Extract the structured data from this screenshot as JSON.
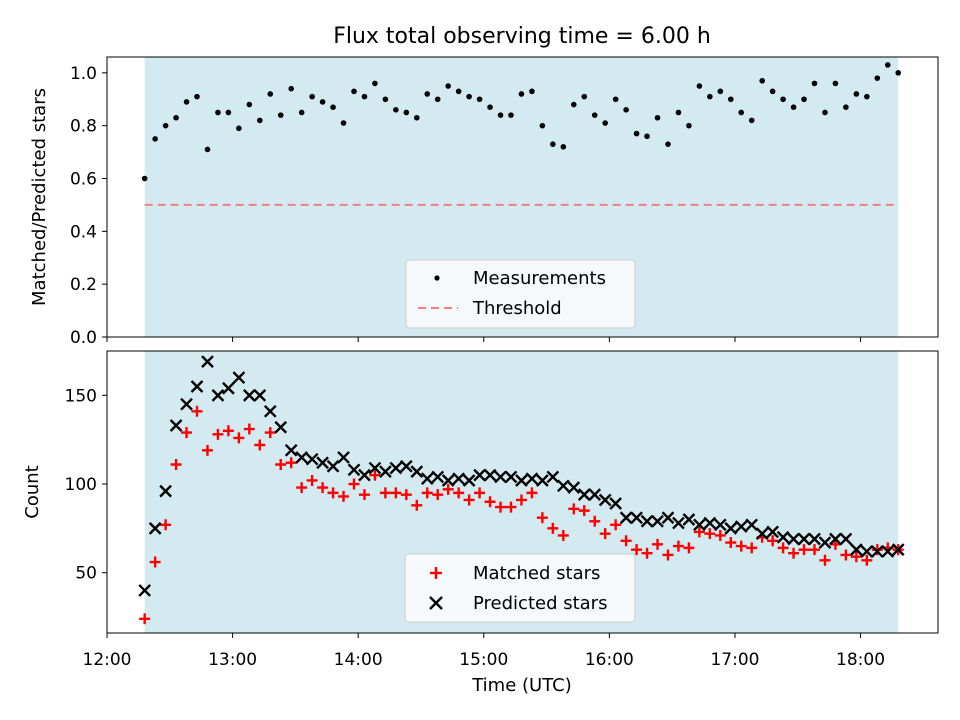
{
  "chart_data": [
    {
      "type": "scatter",
      "title": "Flux total observing time = 6.00 h",
      "xlabel": "",
      "ylabel": "Matched/Predicted stars",
      "ylim": [
        0,
        1.06
      ],
      "yticks": [
        "0.0",
        "0.2",
        "0.4",
        "0.6",
        "0.8",
        "1.0"
      ],
      "shaded_span": [
        "12:18",
        "18:18"
      ],
      "shade_color": "#d3eaf1",
      "threshold": {
        "name": "Threshold",
        "value": 0.5,
        "color": "#f08080",
        "style": "dashed"
      },
      "legend_position": "lower center",
      "series": [
        {
          "name": "Measurements",
          "marker": "dot",
          "color": "#000000",
          "x_start": "12:18",
          "x_step_minutes": 5,
          "values": [
            0.6,
            0.75,
            0.8,
            0.83,
            0.89,
            0.91,
            0.71,
            0.85,
            0.85,
            0.79,
            0.88,
            0.82,
            0.92,
            0.84,
            0.94,
            0.85,
            0.91,
            0.89,
            0.87,
            0.81,
            0.93,
            0.91,
            0.96,
            0.9,
            0.86,
            0.85,
            0.83,
            0.92,
            0.9,
            0.95,
            0.93,
            0.91,
            0.9,
            0.87,
            0.84,
            0.84,
            0.92,
            0.93,
            0.8,
            0.73,
            0.72,
            0.88,
            0.91,
            0.84,
            0.81,
            0.9,
            0.86,
            0.77,
            0.76,
            0.83,
            0.73,
            0.85,
            0.8,
            0.95,
            0.91,
            0.93,
            0.9,
            0.85,
            0.82,
            0.97,
            0.93,
            0.9,
            0.87,
            0.9,
            0.96,
            0.85,
            0.96,
            0.87,
            0.92,
            0.91,
            0.98,
            1.03,
            1.0
          ]
        }
      ]
    },
    {
      "type": "scatter",
      "title": "",
      "xlabel": "Time (UTC)",
      "ylabel": "Count",
      "ylim": [
        16,
        175
      ],
      "yticks": [
        "50",
        "100",
        "150"
      ],
      "xlim": [
        "12:00",
        "18:37"
      ],
      "xticks": [
        "12:00",
        "13:00",
        "14:00",
        "15:00",
        "16:00",
        "17:00",
        "18:00"
      ],
      "shaded_span": [
        "12:18",
        "18:18"
      ],
      "shade_color": "#d3eaf1",
      "legend_position": "lower center",
      "series": [
        {
          "name": "Matched stars",
          "marker": "plus",
          "color": "#ff0000",
          "x_start": "12:18",
          "x_step_minutes": 5,
          "values": [
            24,
            56,
            77,
            111,
            129,
            141,
            119,
            128,
            130,
            126,
            131,
            122,
            129,
            111,
            112,
            98,
            102,
            98,
            95,
            93,
            100,
            94,
            105,
            95,
            95,
            94,
            88,
            95,
            94,
            97,
            95,
            91,
            95,
            90,
            87,
            87,
            91,
            95,
            81,
            75,
            71,
            86,
            85,
            79,
            72,
            77,
            68,
            63,
            61,
            66,
            60,
            65,
            64,
            73,
            72,
            71,
            67,
            65,
            64,
            70,
            68,
            64,
            61,
            63,
            63,
            57,
            66,
            60,
            59,
            57,
            63,
            64,
            63
          ]
        },
        {
          "name": "Predicted stars",
          "marker": "x",
          "color": "#000000",
          "x_start": "12:18",
          "x_step_minutes": 5,
          "values": [
            40,
            75,
            96,
            133,
            145,
            155,
            169,
            150,
            154,
            160,
            150,
            150,
            141,
            132,
            119,
            115,
            114,
            112,
            110,
            115,
            108,
            105,
            109,
            107,
            109,
            110,
            107,
            103,
            104,
            102,
            103,
            102,
            105,
            105,
            104,
            104,
            102,
            103,
            102,
            104,
            99,
            98,
            94,
            94,
            91,
            89,
            81,
            81,
            79,
            79,
            81,
            78,
            80,
            77,
            78,
            77,
            75,
            76,
            77,
            72,
            73,
            70,
            69,
            69,
            69,
            67,
            69,
            69,
            63,
            62,
            62,
            62,
            63
          ]
        }
      ]
    }
  ]
}
